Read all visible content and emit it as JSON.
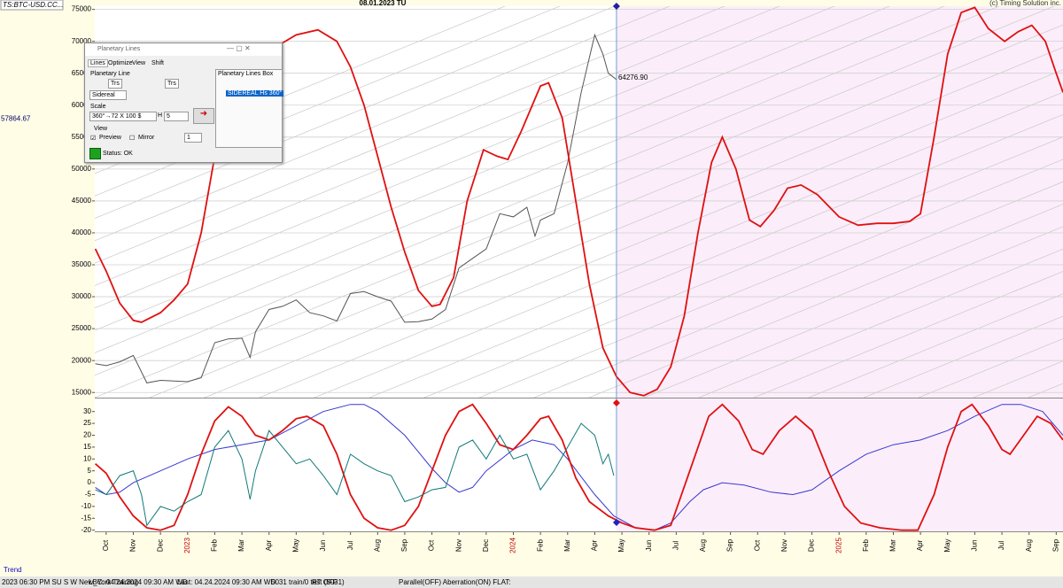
{
  "header": {
    "symbol": "TS:BTC-USD.CC...",
    "date": "08.01.2023 TU",
    "copyright": "(c) Timing Solution inc."
  },
  "chart_data": [
    {
      "type": "line",
      "xlim": [
        -0.42,
        35.25
      ],
      "ylim": [
        14200,
        75500
      ],
      "yticks": [
        15000,
        20000,
        25000,
        30000,
        35000,
        40000,
        45000,
        50000,
        55000,
        60000,
        65000,
        70000,
        75000
      ],
      "grid": true,
      "left_marker": 57864.67,
      "cursor_value": {
        "value": 64276.9,
        "label": "64276.90"
      },
      "forecast_shade": "#fbeefa",
      "series": [
        {
          "color": "#555555",
          "x": [
            -0.4,
            0,
            0.5,
            1,
            1.5,
            2,
            2.5,
            3,
            3.5,
            4,
            4.5,
            5,
            5.3,
            5.5,
            6,
            6.5,
            7,
            7.5,
            8,
            8.5,
            9,
            9.5,
            10,
            10.5,
            11,
            11.5,
            12,
            12.5,
            13,
            13.5,
            14,
            14.5,
            15,
            15.5,
            15.8,
            16,
            16.5,
            17,
            17.5,
            18,
            18.3,
            18.5,
            18.8
          ],
          "values": [
            19500,
            19200,
            19800,
            20800,
            16500,
            16900,
            16800,
            16700,
            17300,
            22800,
            23400,
            23500,
            20500,
            24500,
            28000,
            28500,
            29500,
            27500,
            27000,
            26200,
            30500,
            30800,
            30000,
            29300,
            26000,
            26100,
            26500,
            28000,
            34500,
            36000,
            37500,
            43000,
            42500,
            44000,
            39500,
            42000,
            43000,
            51000,
            62000,
            71000,
            68000,
            65000,
            64000
          ]
        },
        {
          "color": "#e01010",
          "x": [
            -0.4,
            0,
            0.5,
            1,
            1.3,
            2,
            2.5,
            3,
            3.5,
            4,
            4.5,
            5,
            6,
            7,
            7.8,
            8.5,
            9,
            9.5,
            10,
            10.5,
            11,
            11.5,
            12,
            12.3,
            12.8,
            13.3,
            13.9,
            14.4,
            14.8,
            15.3,
            16,
            16.3,
            16.8,
            17.3,
            17.8,
            18.3,
            18.8,
            19.3,
            19.8,
            20.3,
            20.8,
            21.3,
            21.8,
            22.3,
            22.7,
            23.2,
            23.7,
            24.1,
            24.6,
            25.1,
            25.6,
            26.2,
            27,
            27.7,
            28.4,
            29,
            29.6,
            30,
            30.5,
            31,
            31.5,
            32,
            32.5,
            33.1,
            33.6,
            34.1,
            34.6,
            35,
            35.25
          ],
          "values": [
            37500,
            34000,
            29000,
            26300,
            26000,
            27500,
            29500,
            32000,
            40000,
            52000,
            60000,
            64500,
            68500,
            71000,
            71800,
            70000,
            66000,
            60000,
            52000,
            44000,
            37000,
            31000,
            28500,
            28800,
            33000,
            45000,
            53000,
            52000,
            51500,
            56000,
            63000,
            63500,
            58000,
            45000,
            32000,
            22000,
            17500,
            15000,
            14500,
            15500,
            19000,
            27000,
            40000,
            51000,
            55000,
            50000,
            42000,
            41000,
            43500,
            47000,
            47500,
            46000,
            42500,
            41200,
            41500,
            41500,
            41800,
            43000,
            55000,
            68000,
            74500,
            75300,
            72000,
            70000,
            71500,
            72500,
            70000,
            65000,
            62000
          ]
        }
      ]
    },
    {
      "type": "line",
      "xlim": [
        -0.42,
        35.25
      ],
      "ylim": [
        -20.5,
        35.5
      ],
      "yticks": [
        -20,
        -15,
        -10,
        -5,
        0,
        5,
        10,
        15,
        20,
        25,
        30
      ],
      "grid": false,
      "year_tick_color": "#c00000",
      "xticks": [
        {
          "value": 0,
          "label": "Oct"
        },
        {
          "value": 1,
          "label": "Nov"
        },
        {
          "value": 2,
          "label": "Dec"
        },
        {
          "value": 3,
          "label": "2023"
        },
        {
          "value": 4,
          "label": "Feb"
        },
        {
          "value": 5,
          "label": "Mar"
        },
        {
          "value": 6,
          "label": "Apr"
        },
        {
          "value": 7,
          "label": "May"
        },
        {
          "value": 8,
          "label": "Jun"
        },
        {
          "value": 9,
          "label": "Jul"
        },
        {
          "value": 10,
          "label": "Aug"
        },
        {
          "value": 11,
          "label": "Sep"
        },
        {
          "value": 12,
          "label": "Oct"
        },
        {
          "value": 13,
          "label": "Nov"
        },
        {
          "value": 14,
          "label": "Dec"
        },
        {
          "value": 15,
          "label": "2024"
        },
        {
          "value": 16,
          "label": "Feb"
        },
        {
          "value": 17,
          "label": "Mar"
        },
        {
          "value": 18,
          "label": "Apr"
        },
        {
          "value": 19,
          "label": "May"
        },
        {
          "value": 20,
          "label": "Jun"
        },
        {
          "value": 21,
          "label": "Jul"
        },
        {
          "value": 22,
          "label": "Aug"
        },
        {
          "value": 23,
          "label": "Sep"
        },
        {
          "value": 24,
          "label": "Oct"
        },
        {
          "value": 25,
          "label": "Nov"
        },
        {
          "value": 26,
          "label": "Dec"
        },
        {
          "value": 27,
          "label": "2025"
        },
        {
          "value": 28,
          "label": "Feb"
        },
        {
          "value": 29,
          "label": "Mar"
        },
        {
          "value": 30,
          "label": "Apr"
        },
        {
          "value": 31,
          "label": "May"
        },
        {
          "value": 32,
          "label": "Jun"
        },
        {
          "value": 33,
          "label": "Jul"
        },
        {
          "value": 34,
          "label": "Aug"
        },
        {
          "value": 35,
          "label": "Sep"
        }
      ],
      "series": [
        {
          "color": "#3838d0",
          "x": [
            -0.4,
            0,
            0.5,
            1,
            2,
            3,
            4,
            5,
            6,
            7,
            8,
            9,
            9.5,
            10,
            11,
            12,
            12.5,
            13,
            13.5,
            14,
            15,
            15.7,
            16.5,
            17,
            18,
            18.7,
            19.5,
            20.2,
            20.8,
            21.5,
            22,
            22.7,
            23.5,
            24.5,
            25.3,
            26,
            27,
            28,
            29,
            30,
            31,
            32,
            33,
            33.7,
            34.5,
            35.25
          ],
          "values": [
            -2,
            -5,
            -4,
            0,
            5,
            10,
            14,
            16,
            18,
            24,
            30,
            33,
            33,
            30,
            20,
            6,
            0,
            -4,
            -2,
            5,
            14,
            18,
            16,
            10,
            -5,
            -14,
            -19,
            -20,
            -17,
            -8,
            -3,
            0,
            -1,
            -4,
            -5,
            -3,
            5,
            12,
            16,
            18,
            22,
            28,
            33,
            33,
            30,
            20
          ]
        },
        {
          "color": "#e01010",
          "x": [
            -0.4,
            0,
            0.5,
            1,
            1.5,
            2,
            2.5,
            3,
            3.5,
            4,
            4.5,
            5,
            5.5,
            6,
            6.5,
            7,
            7.4,
            8,
            8.5,
            9,
            9.5,
            10,
            10.5,
            11,
            11.5,
            12,
            12.5,
            13,
            13.5,
            14,
            14.5,
            15,
            15.5,
            16,
            16.3,
            16.8,
            17.3,
            17.8,
            18.5,
            19,
            19.5,
            20.2,
            20.8,
            21.5,
            22.2,
            22.7,
            23.3,
            23.8,
            24.2,
            24.8,
            25.4,
            26,
            26.6,
            27.2,
            27.8,
            28.5,
            29.3,
            29.9,
            30.5,
            31,
            31.5,
            31.9,
            32.5,
            33,
            33.3,
            33.8,
            34.3,
            34.8,
            35.25
          ],
          "values": [
            8,
            4,
            -6,
            -14,
            -19,
            -20,
            -18,
            -5,
            12,
            26,
            32,
            28,
            20,
            18,
            22,
            27,
            28,
            24,
            12,
            -5,
            -15,
            -19,
            -20,
            -18,
            -10,
            5,
            20,
            30,
            33,
            25,
            16,
            14,
            20,
            27,
            28,
            18,
            2,
            -8,
            -14,
            -17,
            -19,
            -20,
            -18,
            5,
            28,
            33,
            26,
            14,
            12,
            22,
            28,
            22,
            5,
            -10,
            -17,
            -19,
            -20,
            -20,
            -5,
            15,
            30,
            33,
            24,
            14,
            12,
            20,
            28,
            25,
            18
          ]
        },
        {
          "color": "#107878",
          "x": [
            -0.4,
            0,
            0.5,
            1,
            1.3,
            1.5,
            2,
            2.5,
            3,
            3.5,
            4,
            4.5,
            5,
            5.3,
            5.5,
            6,
            6.5,
            7,
            7.5,
            8,
            8.5,
            9,
            9.5,
            10,
            10.5,
            11,
            11.5,
            12,
            12.5,
            13,
            13.5,
            14,
            14.5,
            15,
            15.5,
            16,
            16.5,
            17,
            17.5,
            18,
            18.3,
            18.5,
            18.7
          ],
          "values": [
            -3,
            -5,
            3,
            5,
            -5,
            -18,
            -10,
            -12,
            -8,
            -5,
            15,
            22,
            10,
            -7,
            5,
            22,
            15,
            8,
            10,
            3,
            -5,
            12,
            8,
            5,
            3,
            -8,
            -6,
            -3,
            -2,
            15,
            18,
            10,
            20,
            10,
            12,
            -3,
            5,
            15,
            25,
            20,
            8,
            12,
            3
          ]
        }
      ]
    }
  ],
  "dialog": {
    "title": "Planetary Lines",
    "tabs": [
      "Lines",
      "Optimize",
      "View",
      "Shift"
    ],
    "planetary_line_label": "Planetary Line",
    "selects": [
      "Trs",
      "Trs"
    ],
    "mode": "Sidereal",
    "scale_label": "Scale",
    "scale": "360°→72 X 100 $",
    "h_label": "H",
    "h_value": "5",
    "view_label": "View",
    "preview": "Preview",
    "mirror": "Mirror",
    "spin": "1",
    "status": "Status: OK",
    "box_title": "Planetary Lines Box",
    "box_item": "SIDEREAL Hs 360°"
  },
  "footer": {
    "panel": "Trend",
    "status": [
      "2023 06:30 PM SU  S W New_York  Training",
      "LBC: 04.24.2024 09:30 AM WD",
      "Last: 04.24.2024 09:30 AM WD",
      "5031 train/0 test (5031)",
      "RT OFF",
      "Parallel(OFF) Aberration(ON) FLAT:"
    ]
  }
}
